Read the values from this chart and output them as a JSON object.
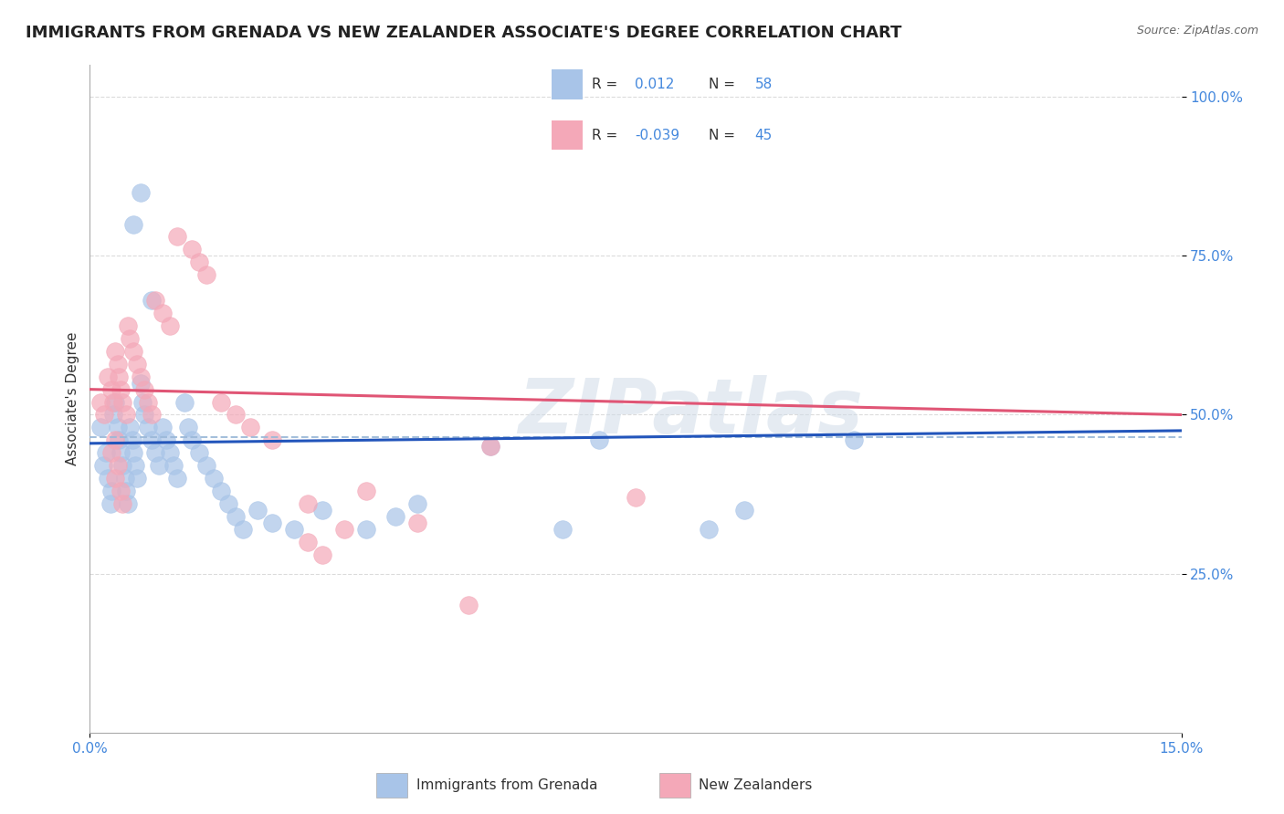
{
  "title": "IMMIGRANTS FROM GRENADA VS NEW ZEALANDER ASSOCIATE'S DEGREE CORRELATION CHART",
  "source": "Source: ZipAtlas.com",
  "ylabel": "Associate's Degree",
  "xlim": [
    0.0,
    15.0
  ],
  "ylim": [
    0.0,
    105.0
  ],
  "yticks": [
    25,
    50,
    75,
    100
  ],
  "ytick_labels": [
    "25.0%",
    "50.0%",
    "75.0%",
    "100.0%"
  ],
  "xtick_labels": [
    "0.0%",
    "15.0%"
  ],
  "r_blue": 0.012,
  "n_blue": 58,
  "r_pink": -0.039,
  "n_pink": 45,
  "legend_label_blue": "Immigrants from Grenada",
  "legend_label_pink": "New Zealanders",
  "blue_color": "#a8c4e8",
  "blue_line_color": "#2255bb",
  "pink_color": "#f4a8b8",
  "pink_line_color": "#e05575",
  "dashed_line_color": "#9ab8d8",
  "background_color": "#ffffff",
  "grid_color": "#cccccc",
  "watermark": "ZIPatlas",
  "title_fontsize": 13,
  "axis_fontsize": 11,
  "tick_fontsize": 11,
  "legend_fontsize": 12,
  "blue_dots_x": [
    0.15,
    0.22,
    0.18,
    0.25,
    0.3,
    0.28,
    0.35,
    0.32,
    0.38,
    0.4,
    0.42,
    0.45,
    0.48,
    0.5,
    0.52,
    0.55,
    0.58,
    0.6,
    0.62,
    0.65,
    0.7,
    0.72,
    0.75,
    0.8,
    0.85,
    0.9,
    0.95,
    1.0,
    1.05,
    1.1,
    1.15,
    1.2,
    1.3,
    1.35,
    1.4,
    1.5,
    1.6,
    1.7,
    1.8,
    1.9,
    2.0,
    2.1,
    2.3,
    2.5,
    2.8,
    3.2,
    3.8,
    4.5,
    5.5,
    7.0,
    8.5,
    10.5,
    4.2,
    6.5,
    9.0,
    0.6,
    0.7,
    0.85
  ],
  "blue_dots_y": [
    48,
    44,
    42,
    40,
    38,
    36,
    52,
    50,
    48,
    46,
    44,
    42,
    40,
    38,
    36,
    48,
    46,
    44,
    42,
    40,
    55,
    52,
    50,
    48,
    46,
    44,
    42,
    48,
    46,
    44,
    42,
    40,
    52,
    48,
    46,
    44,
    42,
    40,
    38,
    36,
    34,
    32,
    35,
    33,
    32,
    35,
    32,
    36,
    45,
    46,
    32,
    46,
    34,
    32,
    35,
    80,
    85,
    68
  ],
  "pink_dots_x": [
    0.15,
    0.2,
    0.25,
    0.3,
    0.32,
    0.35,
    0.38,
    0.4,
    0.42,
    0.45,
    0.5,
    0.52,
    0.55,
    0.6,
    0.65,
    0.7,
    0.75,
    0.8,
    0.85,
    0.9,
    1.0,
    1.1,
    1.2,
    1.4,
    1.5,
    1.6,
    1.8,
    2.0,
    2.2,
    2.5,
    3.0,
    3.5,
    4.5,
    5.5,
    5.2,
    3.0,
    3.2,
    0.35,
    0.3,
    0.38,
    0.35,
    0.42,
    0.45,
    3.8,
    7.5
  ],
  "pink_dots_y": [
    52,
    50,
    56,
    54,
    52,
    60,
    58,
    56,
    54,
    52,
    50,
    64,
    62,
    60,
    58,
    56,
    54,
    52,
    50,
    68,
    66,
    64,
    78,
    76,
    74,
    72,
    52,
    50,
    48,
    46,
    36,
    32,
    33,
    45,
    20,
    30,
    28,
    46,
    44,
    42,
    40,
    38,
    36,
    38,
    37
  ],
  "blue_trend_y0": 45.5,
  "blue_trend_y1": 47.5,
  "pink_trend_y0": 54.0,
  "pink_trend_y1": 50.0,
  "dashed_ref_y": 46.5
}
